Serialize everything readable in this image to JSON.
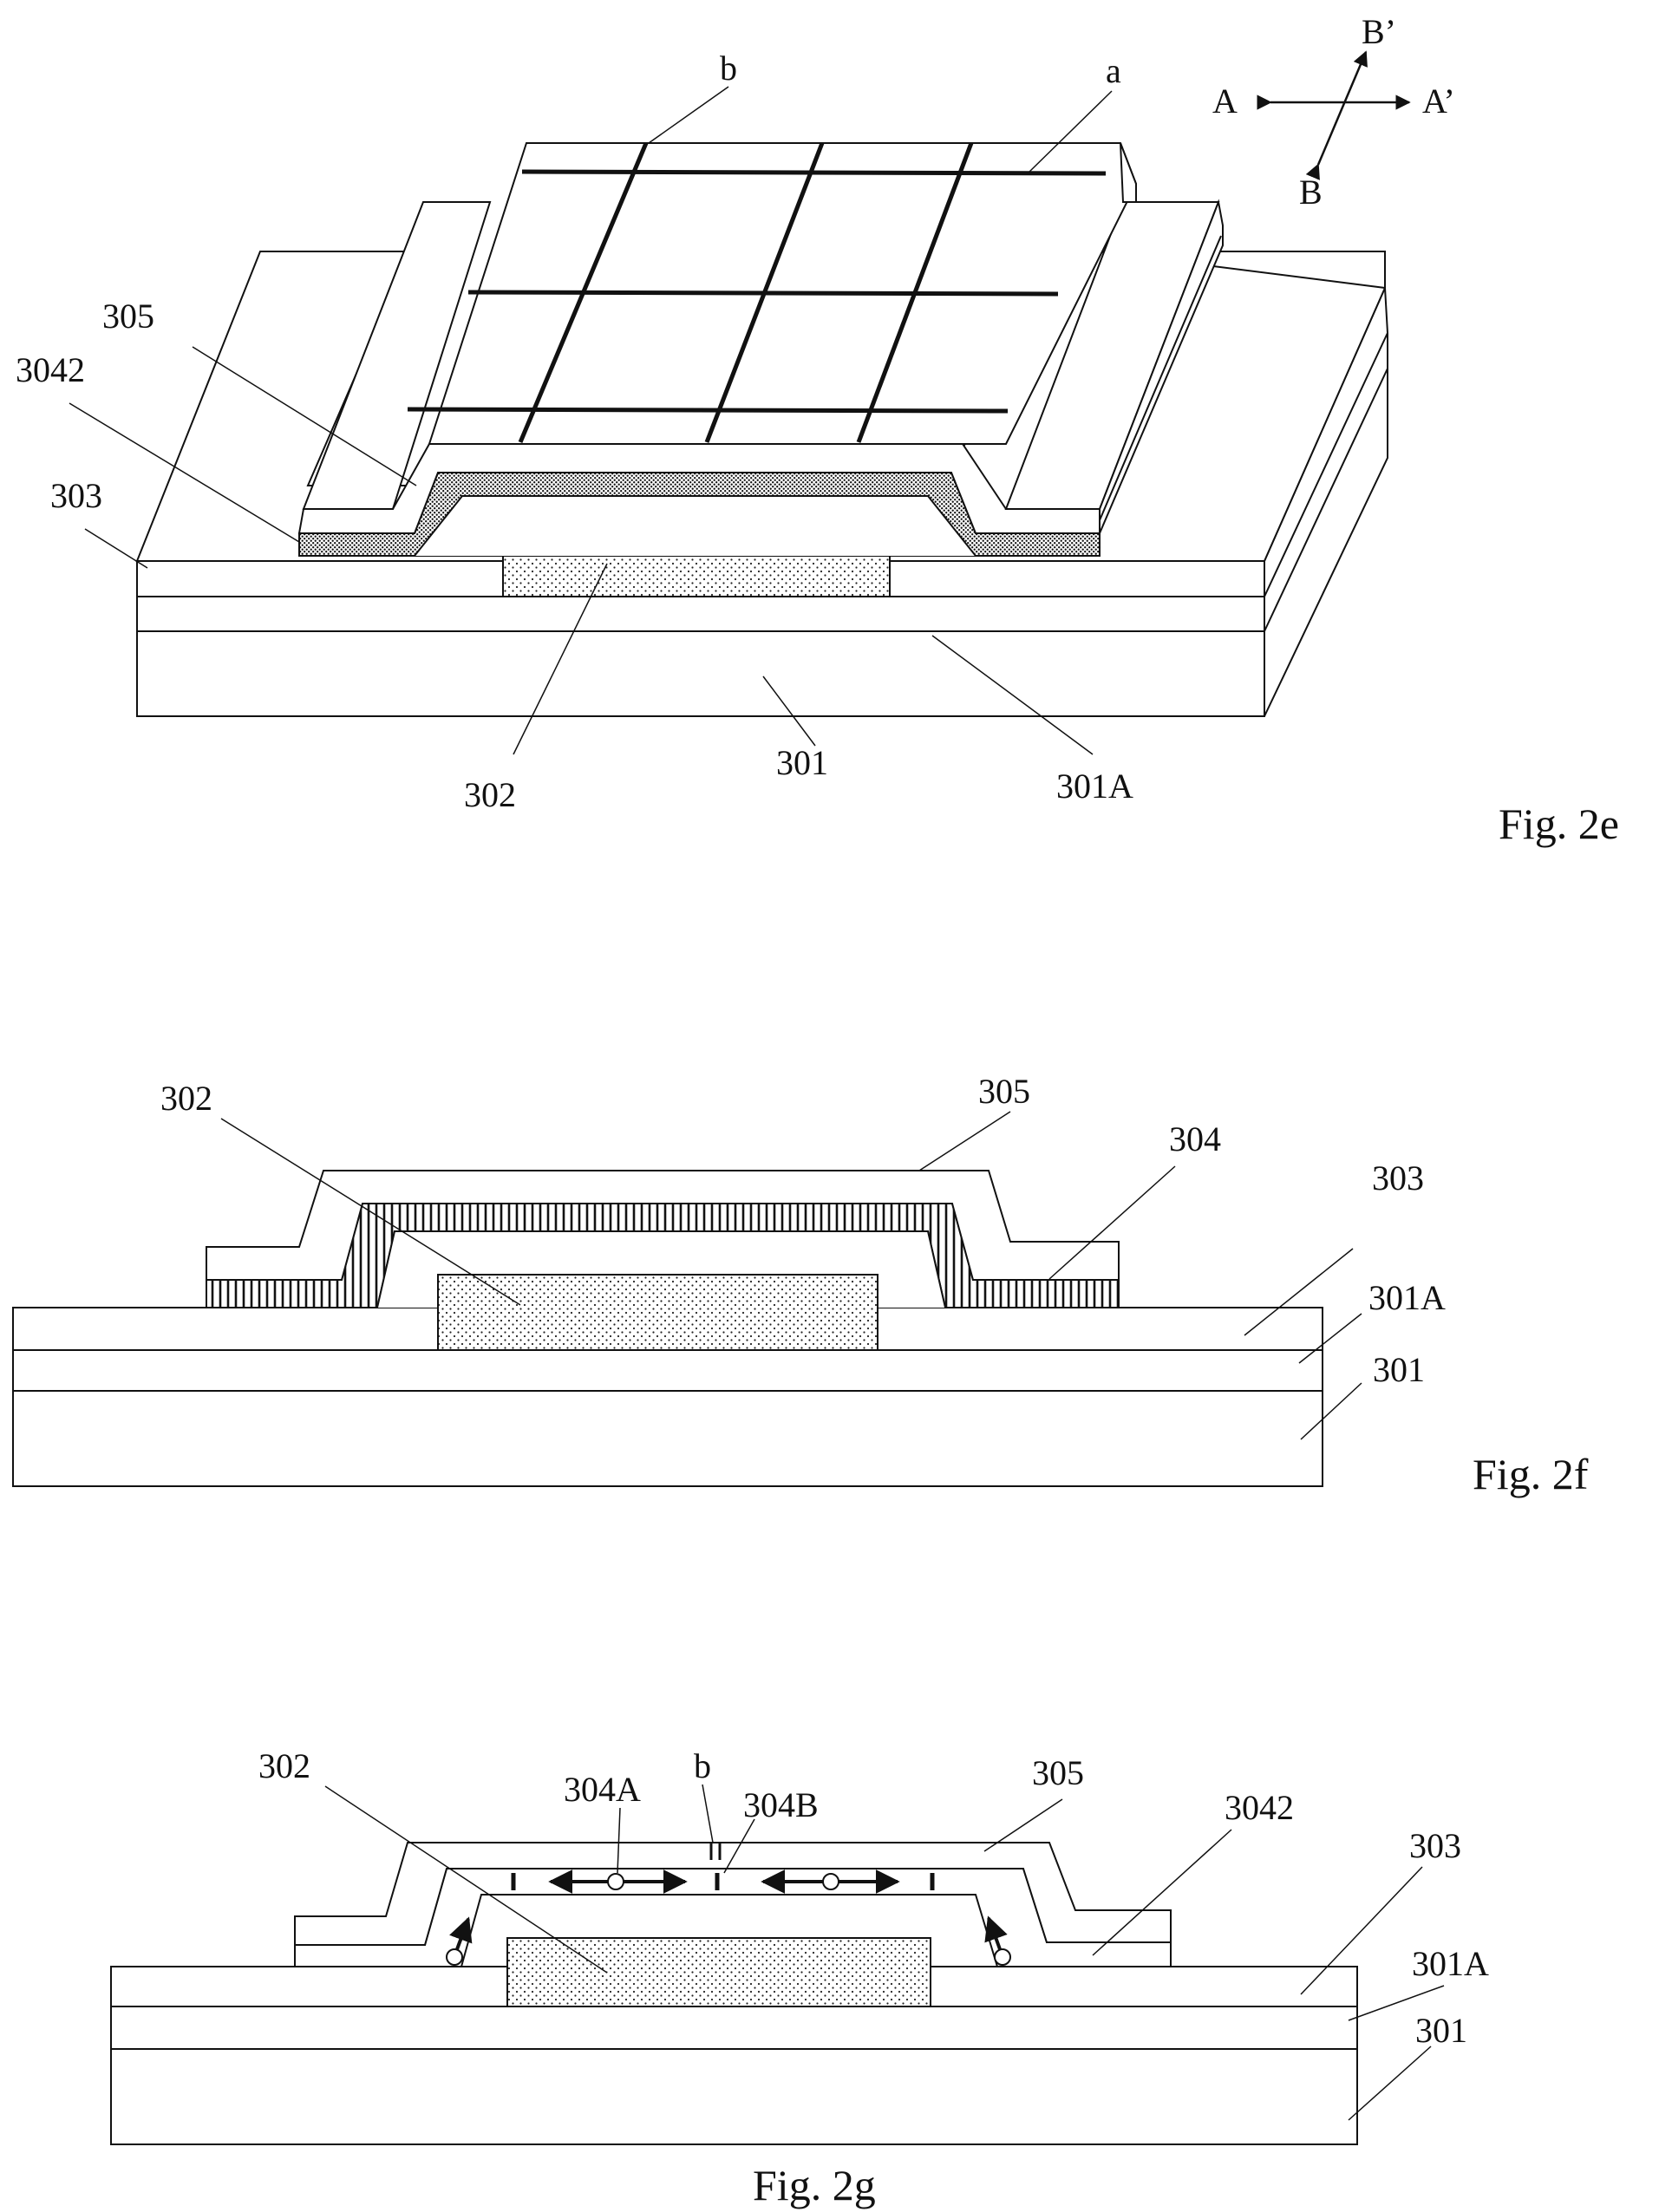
{
  "figures": [
    {
      "caption": "Fig. 2e",
      "labels": {
        "b": "b",
        "a": "a",
        "A": "A",
        "A_prime": "A’",
        "B": "B",
        "B_prime": "B’",
        "l305": "305",
        "l3042": "3042",
        "l303": "303",
        "l302": "302",
        "l301": "301",
        "l301A": "301A"
      }
    },
    {
      "caption": "Fig. 2f",
      "labels": {
        "l302": "302",
        "l305": "305",
        "l304": "304",
        "l303": "303",
        "l301A": "301A",
        "l301": "301"
      }
    },
    {
      "caption": "Fig. 2g",
      "labels": {
        "b": "b",
        "l302": "302",
        "l304A": "304A",
        "l304B": "304B",
        "l305": "305",
        "l3042": "3042",
        "l303": "303",
        "l301A": "301A",
        "l301": "301"
      }
    }
  ],
  "colors": {
    "line": "#111111",
    "background": "#ffffff"
  }
}
